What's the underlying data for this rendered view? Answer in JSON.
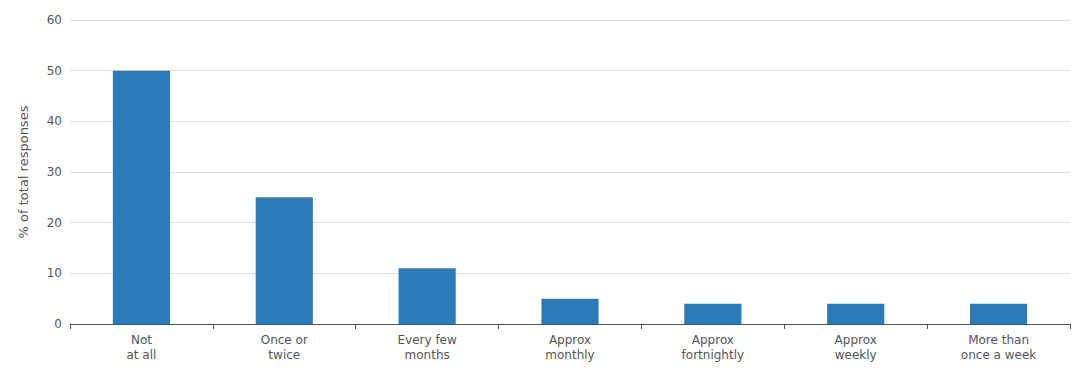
{
  "chart_data": {
    "type": "bar",
    "categories": [
      "Not\nat all",
      "Once or\ntwice",
      "Every few\nmonths",
      "Approx\nmonthly",
      "Approx\nfortnightly",
      "Approx\nweekly",
      "More than\nonce a week"
    ],
    "values": [
      50.0,
      25.0,
      11.0,
      5.0,
      4.0,
      4.0,
      4.0
    ],
    "color": "#2b7bba",
    "ylabel": "% of total responses",
    "ylim": [
      0,
      60
    ],
    "yticks": [
      0,
      10,
      20,
      30,
      40,
      50,
      60
    ],
    "grid": true
  }
}
